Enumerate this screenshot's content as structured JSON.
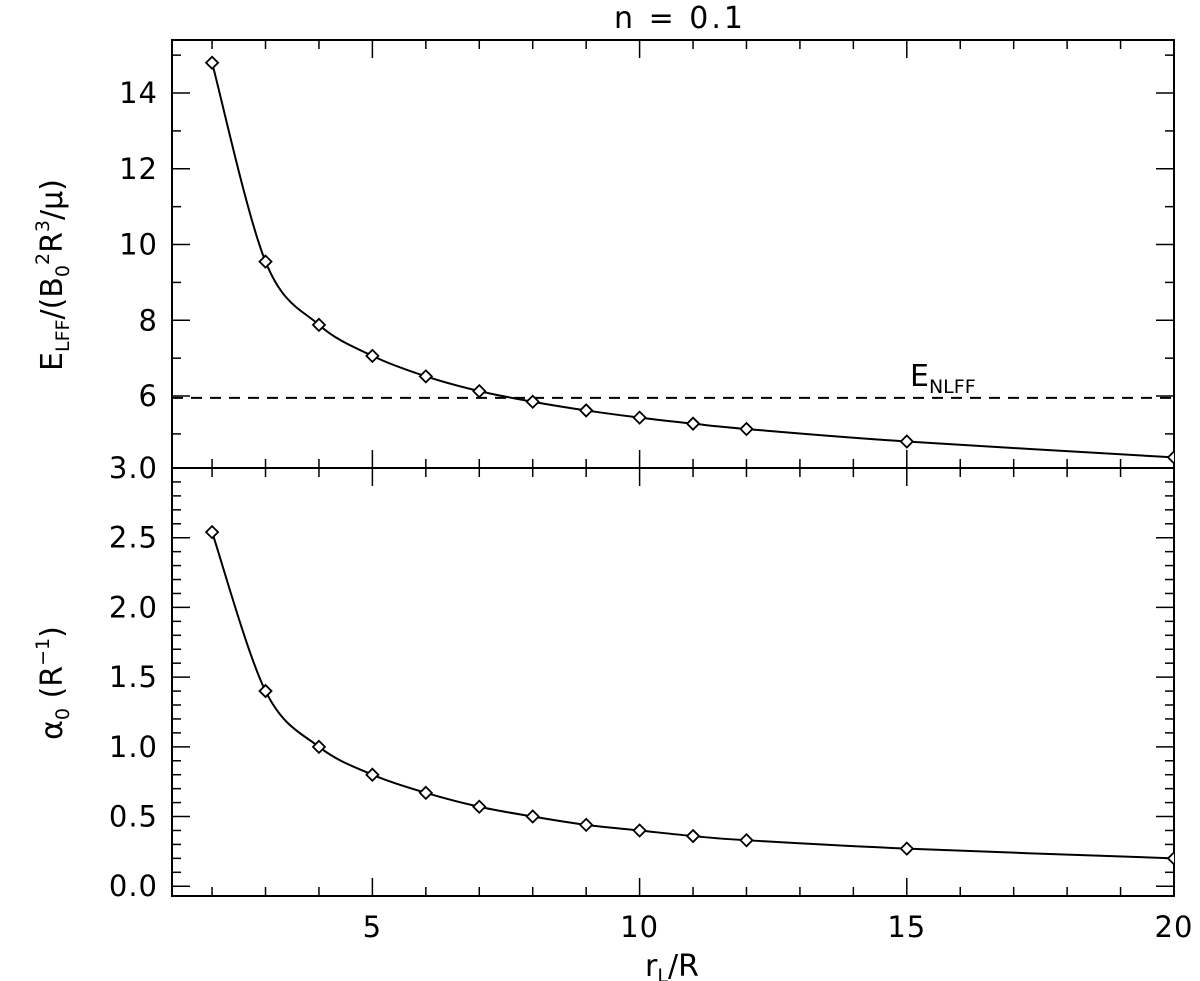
{
  "figure": {
    "title": "n = 0.1"
  },
  "chart_data": [
    {
      "type": "line",
      "panel": "top",
      "ylabel": "E_LFF/(B_0^2 R^3/μ)",
      "xlabel": "",
      "xlim": [
        1.25,
        20
      ],
      "ylim": [
        4.1,
        15.4
      ],
      "yticks": [
        6,
        8,
        10,
        12,
        14
      ],
      "ytick_labels": [
        "6",
        "8",
        "10",
        "12",
        "14"
      ],
      "y_minor_step": 1,
      "x_tick_labels_shown": false,
      "series": [
        {
          "marker": "diamond",
          "line": "solid",
          "x": [
            2,
            3,
            4,
            5,
            6,
            7,
            8,
            9,
            10,
            11,
            12,
            15,
            20
          ],
          "y": [
            14.8,
            9.55,
            7.88,
            7.06,
            6.52,
            6.13,
            5.85,
            5.62,
            5.43,
            5.27,
            5.13,
            4.8,
            4.38
          ]
        }
      ],
      "reference_line": {
        "style": "dashed",
        "y": 5.95,
        "label_main": "E",
        "label_sub": "NLFF"
      }
    },
    {
      "type": "line",
      "panel": "bottom",
      "ylabel": "α0 (R^-1)",
      "xlabel": "rL/R",
      "xlim": [
        1.25,
        20
      ],
      "ylim": [
        -0.07,
        3.0
      ],
      "yticks": [
        0.0,
        0.5,
        1.0,
        1.5,
        2.0,
        2.5,
        3.0
      ],
      "ytick_labels": [
        "0.0",
        "0.5",
        "1.0",
        "1.5",
        "2.0",
        "2.5",
        "3.0"
      ],
      "xticks": [
        5,
        10,
        15,
        20
      ],
      "xtick_labels": [
        "5",
        "10",
        "15",
        "20"
      ],
      "x_minor_step": 1,
      "y_minor_step": 0.1,
      "series": [
        {
          "marker": "diamond",
          "line": "solid",
          "x": [
            2,
            3,
            4,
            5,
            6,
            7,
            8,
            9,
            10,
            11,
            12,
            15,
            20
          ],
          "y": [
            2.54,
            1.4,
            1.0,
            0.8,
            0.67,
            0.57,
            0.5,
            0.44,
            0.4,
            0.36,
            0.33,
            0.27,
            0.2
          ]
        }
      ]
    }
  ],
  "labels": {
    "top_y": {
      "main": "E",
      "sub1": "LFF",
      "mid1": "/(B",
      "sub2": "0",
      "sup2": "2",
      "mid2": "R",
      "sup3": "3",
      "mid3": "/μ)"
    },
    "bottom_y": {
      "main": "α",
      "sub1": "0",
      "mid1": " (R",
      "sup1": "−1",
      "end": ")"
    },
    "x": {
      "main": "r",
      "sub1": "L",
      "end": "/R"
    }
  }
}
